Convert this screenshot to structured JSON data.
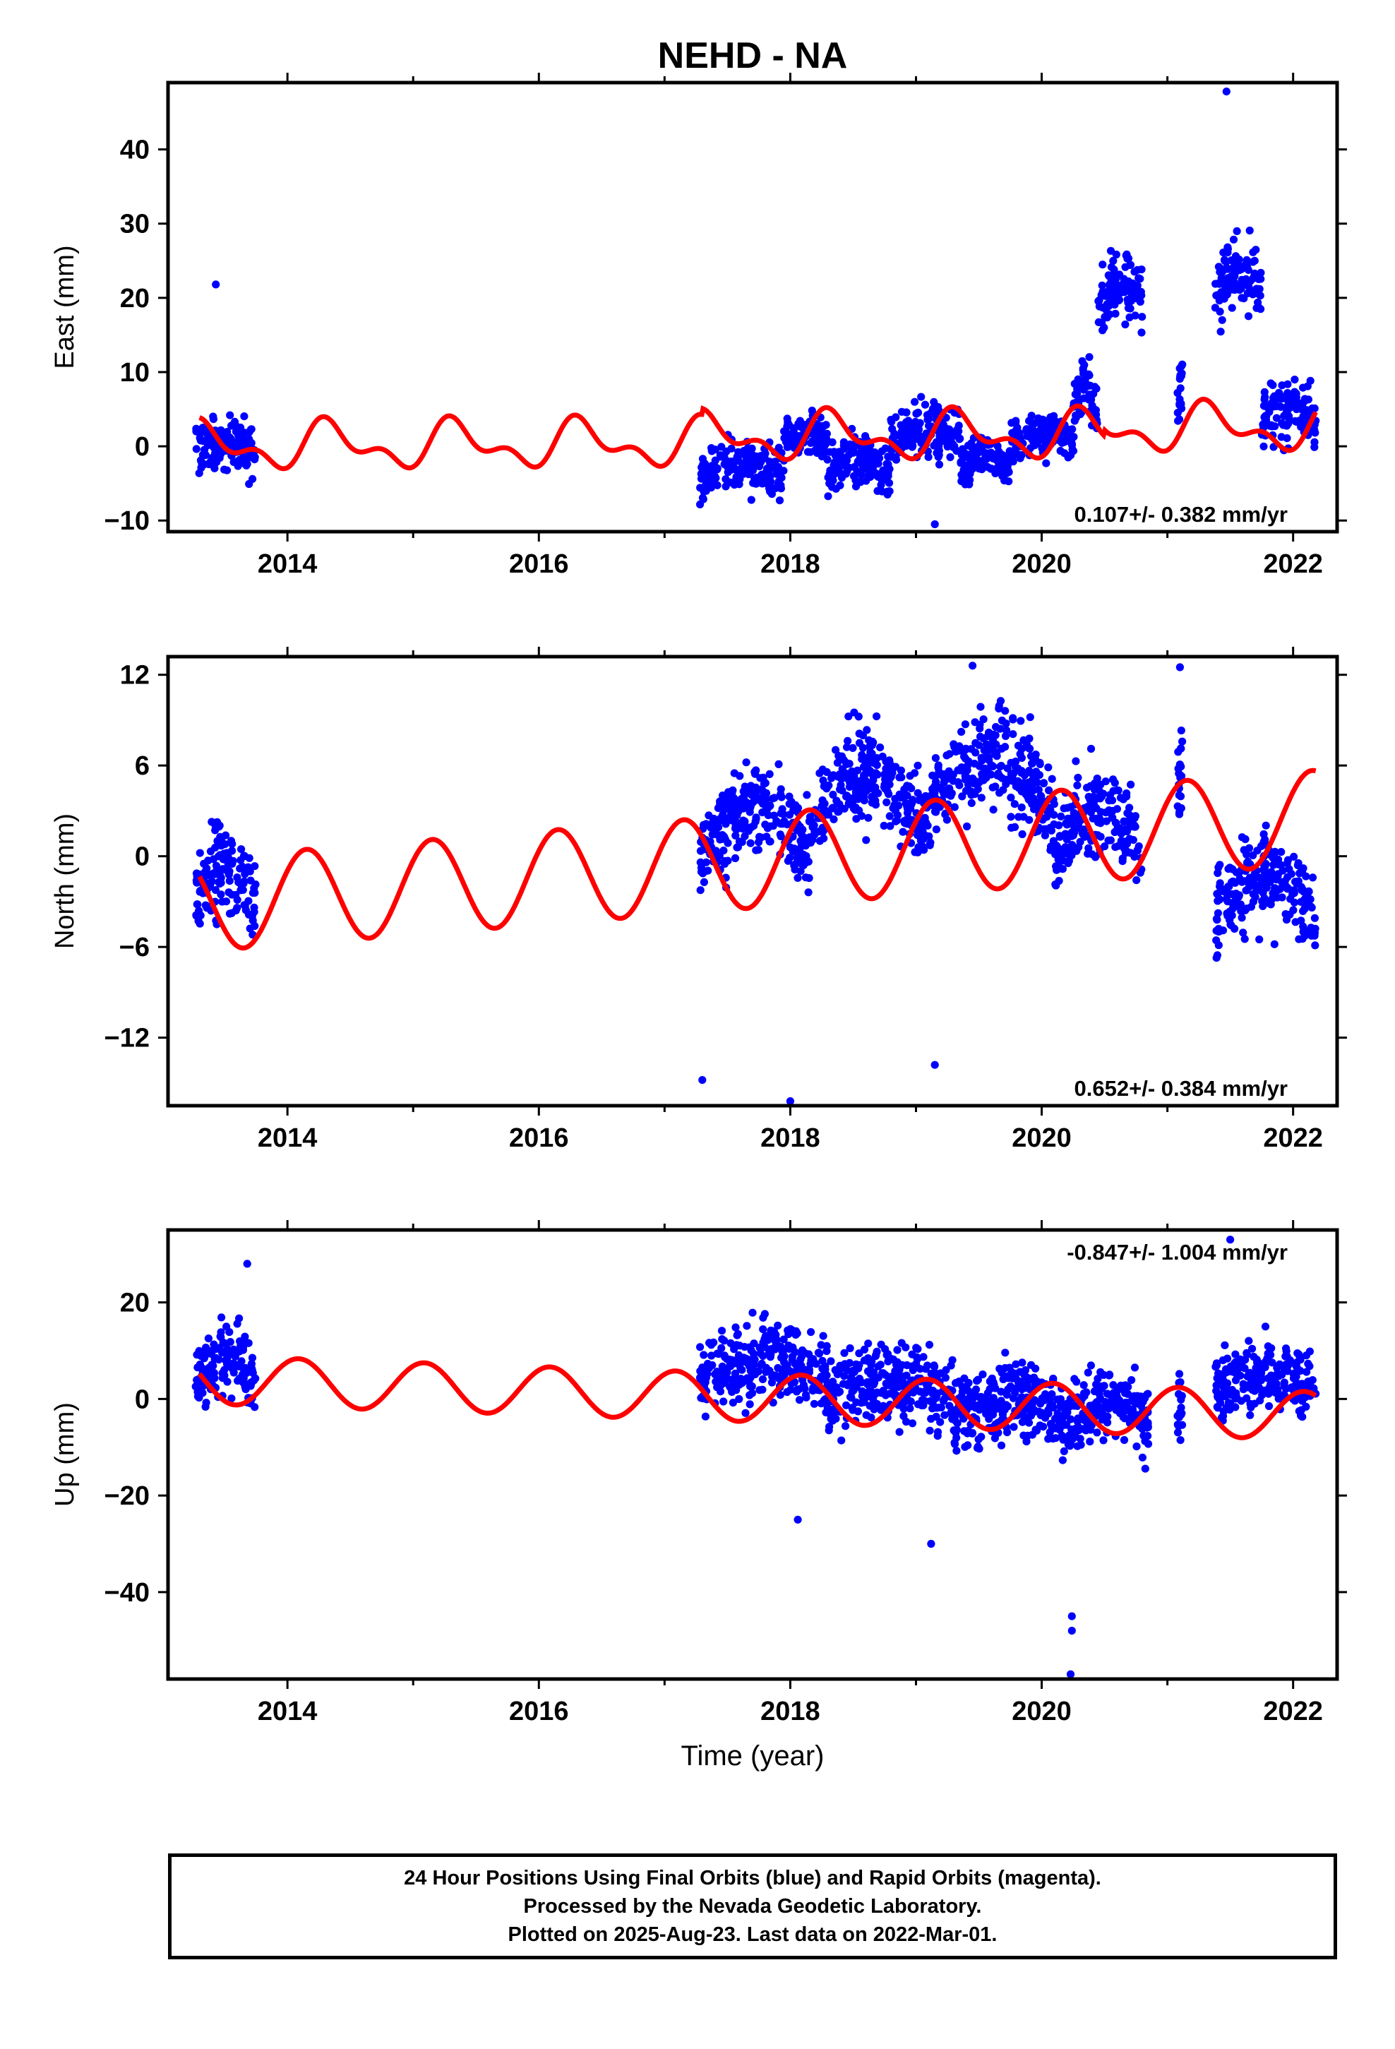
{
  "title": "NEHD - NA",
  "colors": {
    "final_points": "#0000ff",
    "model_line": "#ff0000",
    "axis": "#000000",
    "background": "#ffffff"
  },
  "footer": {
    "line1": "24 Hour Positions Using Final Orbits (blue) and Rapid Orbits (magenta).",
    "line2": "Processed by the Nevada Geodetic Laboratory.",
    "line3": "Plotted on 2025-Aug-23. Last data on 2022-Mar-01."
  },
  "chart_data": [
    {
      "type": "scatter",
      "title": "NEHD - NA",
      "xlabel": "",
      "ylabel": "East (mm)",
      "xlim": [
        2013.05,
        2022.35
      ],
      "ylim": [
        -11.5,
        49
      ],
      "xticks": [
        2014,
        2016,
        2018,
        2020,
        2022
      ],
      "yticks": [
        -10,
        0,
        10,
        20,
        30,
        40
      ],
      "xminor": [
        2015,
        2017,
        2019,
        2021
      ],
      "annotation": "0.107+/- 0.382 mm/yr",
      "annotation_anchor": "bottom-right",
      "point_segments": [
        {
          "start": 2013.27,
          "end": 2013.75,
          "base": -1.5,
          "amp": 3.0,
          "spread": 3.0
        },
        {
          "start": 2017.28,
          "end": 2017.95,
          "base": -4.0,
          "amp": 2.0,
          "spread": 3.0
        },
        {
          "start": 2017.95,
          "end": 2018.3,
          "base": 0.5,
          "amp": 1.5,
          "spread": 2.5
        },
        {
          "start": 2018.3,
          "end": 2018.8,
          "base": -4.0,
          "amp": 3.0,
          "spread": 3.0
        },
        {
          "start": 2018.8,
          "end": 2019.35,
          "base": 1.0,
          "amp": 1.5,
          "spread": 3.0
        },
        {
          "start": 2019.35,
          "end": 2019.75,
          "base": -3.0,
          "amp": 2.0,
          "spread": 2.5
        },
        {
          "start": 2019.75,
          "end": 2020.25,
          "base": 0.5,
          "amp": 1.5,
          "spread": 2.5
        },
        {
          "start": 2020.25,
          "end": 2020.45,
          "base": 5.0,
          "amp": 3.0,
          "spread": 4.0
        },
        {
          "start": 2020.45,
          "end": 2020.8,
          "base": 20.0,
          "amp": 3.0,
          "spread": 4.0
        },
        {
          "start": 2021.08,
          "end": 2021.12,
          "base": 5.0,
          "amp": 4.0,
          "spread": 4.0
        },
        {
          "start": 2021.38,
          "end": 2021.75,
          "base": 20.0,
          "amp": 4.0,
          "spread": 4.5
        },
        {
          "start": 2021.75,
          "end": 2022.18,
          "base": 3.0,
          "amp": 3.0,
          "spread": 3.5
        }
      ],
      "outliers": [
        {
          "x": 2013.43,
          "y": 21.8
        },
        {
          "x": 2021.47,
          "y": 47.8
        },
        {
          "x": 2019.15,
          "y": -10.5
        }
      ],
      "model": {
        "trend": 0.107,
        "offset": 0.0,
        "ref_year": 2013.3,
        "annual_amp": 2.5,
        "semi_annual_amp": 1.6,
        "annual_phase": 1.3,
        "semi_phase": 2.0,
        "steps": [
          {
            "x": 2017.3,
            "dy": 0.8
          },
          {
            "x": 2020.5,
            "dy": 0.8
          }
        ]
      },
      "n_points": 1400
    },
    {
      "type": "scatter",
      "xlabel": "",
      "ylabel": "North (mm)",
      "xlim": [
        2013.05,
        2022.35
      ],
      "ylim": [
        -16.5,
        13.2
      ],
      "xticks": [
        2014,
        2016,
        2018,
        2020,
        2022
      ],
      "yticks": [
        -12,
        -6,
        0,
        6,
        12
      ],
      "xminor": [
        2015,
        2017,
        2019,
        2021
      ],
      "annotation": "0.652+/- 0.384 mm/yr",
      "annotation_anchor": "bottom-right",
      "point_segments": [
        {
          "start": 2013.27,
          "end": 2013.75,
          "base": -3.0,
          "amp": 3.0,
          "spread": 2.5
        },
        {
          "start": 2017.28,
          "end": 2018.15,
          "base": 0.0,
          "amp": 4.0,
          "spread": 2.5
        },
        {
          "start": 2018.15,
          "end": 2019.05,
          "base": 2.0,
          "amp": 4.5,
          "spread": 2.5
        },
        {
          "start": 2019.05,
          "end": 2020.1,
          "base": 2.5,
          "amp": 5.0,
          "spread": 2.5
        },
        {
          "start": 2020.1,
          "end": 2020.8,
          "base": 0.0,
          "amp": 4.0,
          "spread": 2.5
        },
        {
          "start": 2021.08,
          "end": 2021.12,
          "base": 4.0,
          "amp": 3.0,
          "spread": 3.0
        },
        {
          "start": 2021.38,
          "end": 2022.18,
          "base": -4.0,
          "amp": 3.5,
          "spread": 2.5
        }
      ],
      "outliers": [
        {
          "x": 2017.3,
          "y": -14.8
        },
        {
          "x": 2018.0,
          "y": -16.2
        },
        {
          "x": 2019.15,
          "y": -13.8
        },
        {
          "x": 2019.45,
          "y": 12.6
        },
        {
          "x": 2021.1,
          "y": 12.5
        }
      ],
      "model": {
        "trend": 0.652,
        "offset": -3.2,
        "ref_year": 2013.3,
        "annual_amp": 3.1,
        "semi_annual_amp": 0.0,
        "annual_phase": 2.5,
        "semi_phase": 0.0,
        "steps": []
      },
      "n_points": 1400
    },
    {
      "type": "scatter",
      "xlabel": "Time (year)",
      "ylabel": "Up (mm)",
      "xlim": [
        2013.05,
        2022.35
      ],
      "ylim": [
        -58,
        35
      ],
      "xticks": [
        2014,
        2016,
        2018,
        2020,
        2022
      ],
      "yticks": [
        -40,
        -20,
        0,
        20
      ],
      "xminor": [
        2015,
        2017,
        2019,
        2021
      ],
      "annotation": "-0.847+/- 1.004 mm/yr",
      "annotation_anchor": "top-right",
      "point_segments": [
        {
          "start": 2013.27,
          "end": 2013.75,
          "base": 4.0,
          "amp": 6.0,
          "spread": 6.0
        },
        {
          "start": 2017.28,
          "end": 2018.3,
          "base": 4.0,
          "amp": 5.0,
          "spread": 7.0
        },
        {
          "start": 2018.3,
          "end": 2019.3,
          "base": 0.0,
          "amp": 5.0,
          "spread": 7.0
        },
        {
          "start": 2019.3,
          "end": 2020.2,
          "base": -4.0,
          "amp": 5.0,
          "spread": 7.0
        },
        {
          "start": 2020.2,
          "end": 2020.85,
          "base": -5.0,
          "amp": 5.0,
          "spread": 6.0
        },
        {
          "start": 2021.08,
          "end": 2021.12,
          "base": -5.0,
          "amp": 5.0,
          "spread": 6.0
        },
        {
          "start": 2021.38,
          "end": 2022.18,
          "base": 2.0,
          "amp": 4.0,
          "spread": 6.0
        }
      ],
      "outliers": [
        {
          "x": 2013.68,
          "y": 28.0
        },
        {
          "x": 2018.06,
          "y": -25.0
        },
        {
          "x": 2019.12,
          "y": -30.0
        },
        {
          "x": 2020.24,
          "y": -45.0
        },
        {
          "x": 2020.24,
          "y": -48.0
        },
        {
          "x": 2020.23,
          "y": -57.0
        },
        {
          "x": 2021.5,
          "y": 33.0
        }
      ],
      "model": {
        "trend": -0.847,
        "offset": 4.0,
        "ref_year": 2013.3,
        "annual_amp": 5.0,
        "semi_annual_amp": 0.0,
        "annual_phase": 2.9,
        "semi_phase": 0.0,
        "steps": []
      },
      "n_points": 1400
    }
  ]
}
